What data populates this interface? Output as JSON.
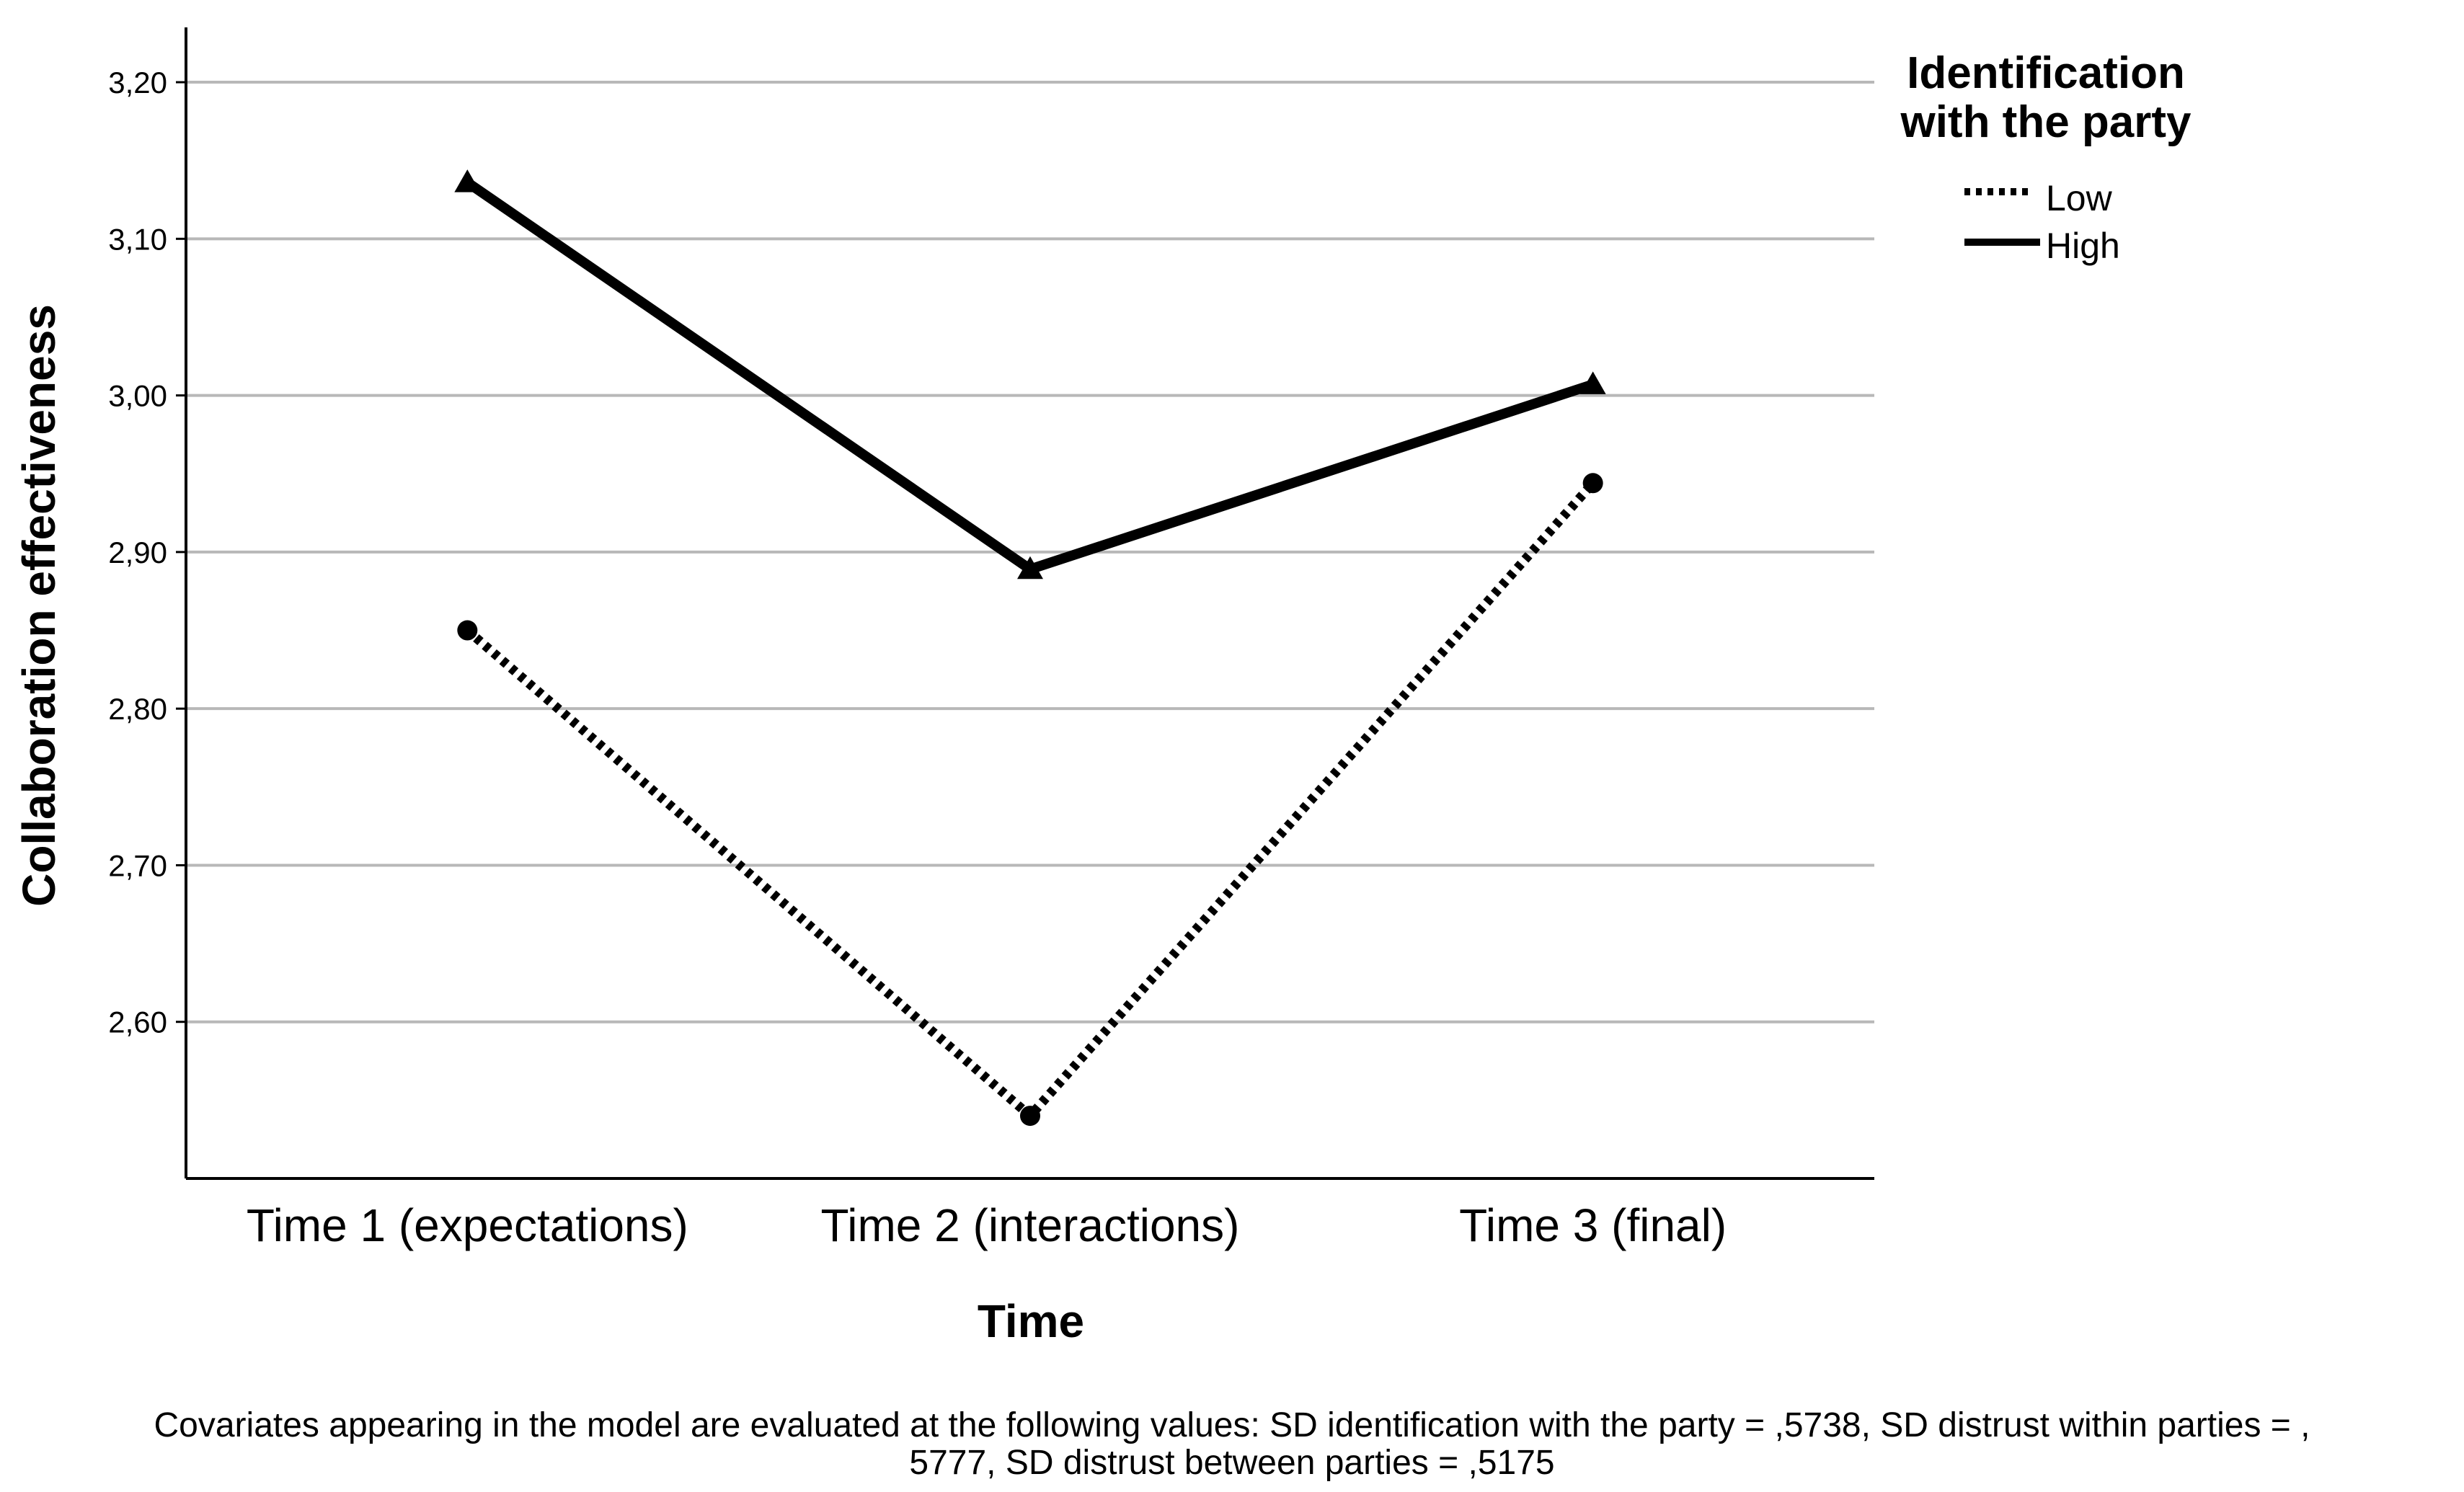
{
  "chart_data": {
    "type": "line",
    "xlabel": "Time",
    "ylabel": "Collaboration effectiveness",
    "categories": [
      "Time 1 (expectations)",
      "Time 2 (interactions)",
      "Time 3 (final)"
    ],
    "ylim": [
      2.5,
      3.235
    ],
    "yticks": [
      "3,20",
      "3,10",
      "3,00",
      "2,90",
      "2,80",
      "2,70",
      "2,60"
    ],
    "ytick_values": [
      3.2,
      3.1,
      3.0,
      2.9,
      2.8,
      2.7,
      2.6
    ],
    "grid": true,
    "legend": {
      "title_line1": "Identification",
      "title_line2": "with the party",
      "placement": "right"
    },
    "series": [
      {
        "name": "Low",
        "style": "dotted",
        "marker": "circle",
        "color": "#000000",
        "values": [
          2.85,
          2.54,
          2.944
        ]
      },
      {
        "name": "High",
        "style": "solid",
        "marker": "triangle",
        "color": "#000000",
        "values": [
          3.136,
          2.889,
          3.007
        ]
      }
    ],
    "footnote_line1": "Covariates appearing in the model are evaluated at the following values: SD identification with the party = ,5738, SD distrust within parties = ,",
    "footnote_line2": "5777, SD distrust between parties = ,5175"
  },
  "colors": {
    "grid": "#b8b8b8",
    "axis": "#000000",
    "background": "#ffffff"
  }
}
